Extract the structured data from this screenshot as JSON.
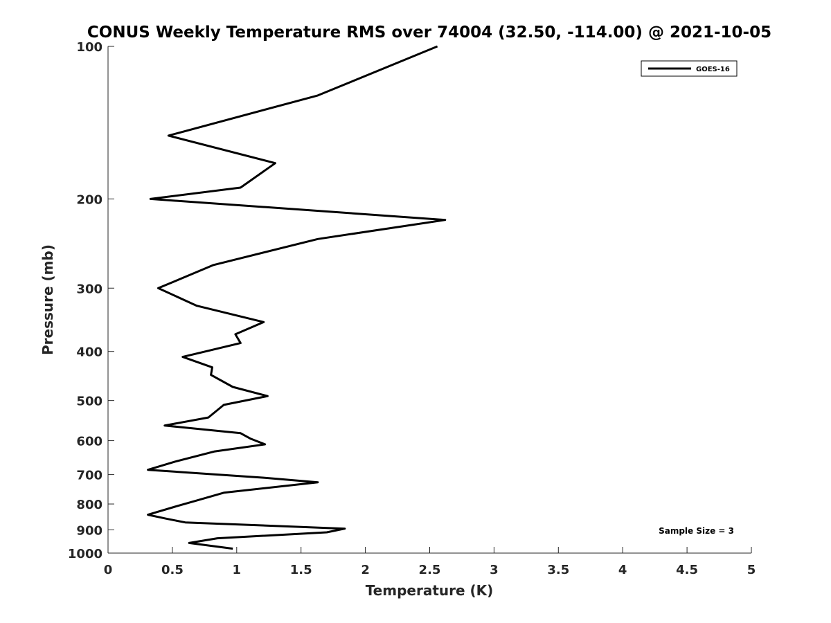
{
  "chart_data": {
    "type": "line",
    "title": "CONUS Weekly Temperature RMS over 74004 (32.50, -114.00) @ 2021-10-05",
    "xlabel": "Temperature (K)",
    "ylabel": "Pressure (mb)",
    "xlim": [
      0,
      5
    ],
    "ylim": [
      100,
      1000
    ],
    "yscale": "log",
    "yreversed": true,
    "xticks": [
      "0",
      "0.5",
      "1",
      "1.5",
      "2",
      "2.5",
      "3",
      "3.5",
      "4",
      "4.5",
      "5"
    ],
    "yticks": [
      "100",
      "200",
      "300",
      "400",
      "500",
      "600",
      "700",
      "800",
      "900",
      "1000"
    ],
    "grid": false,
    "legend_position": "top-right",
    "series": [
      {
        "name": "GOES-16",
        "color": "#000000",
        "x": [
          2.56,
          1.63,
          0.47,
          1.3,
          1.03,
          0.33,
          2.62,
          1.63,
          0.82,
          0.39,
          0.69,
          1.21,
          0.99,
          1.03,
          0.58,
          0.81,
          0.8,
          0.97,
          1.24,
          0.9,
          0.78,
          0.44,
          1.03,
          1.11,
          1.22,
          0.83,
          0.52,
          0.31,
          1.21,
          1.63,
          0.9,
          0.67,
          0.52,
          0.31,
          0.45,
          0.6,
          1.84,
          1.7,
          0.85,
          0.63,
          0.97
        ],
        "y": [
          100,
          125,
          150,
          170,
          190,
          200,
          220,
          240,
          270,
          300,
          325,
          350,
          370,
          385,
          410,
          430,
          445,
          470,
          490,
          510,
          540,
          560,
          580,
          595,
          610,
          630,
          660,
          685,
          710,
          725,
          760,
          790,
          810,
          840,
          855,
          870,
          895,
          910,
          935,
          955,
          980
        ]
      }
    ],
    "annotations": [
      "Sample Size = 3"
    ]
  }
}
